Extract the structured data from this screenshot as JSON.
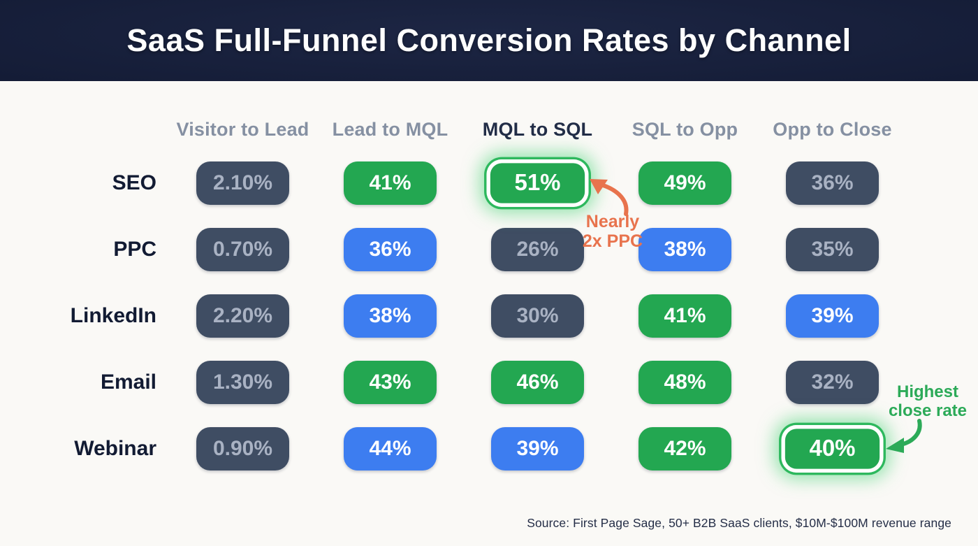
{
  "title": "SaaS Full-Funnel Conversion Rates by Channel",
  "source": "Source: First Page Sage, 50+ B2B SaaS clients, $10M-$100M revenue range",
  "chart_data": {
    "type": "table",
    "title": "SaaS Full-Funnel Conversion Rates by Channel",
    "columns": [
      {
        "label": "Visitor to Lead",
        "emphasized": false
      },
      {
        "label": "Lead to MQL",
        "emphasized": false
      },
      {
        "label": "MQL to SQL",
        "emphasized": true
      },
      {
        "label": "SQL to Opp",
        "emphasized": false
      },
      {
        "label": "Opp to Close",
        "emphasized": false
      }
    ],
    "rows": [
      {
        "channel": "SEO",
        "values": [
          "2.10%",
          "41%",
          "51%",
          "49%",
          "36%"
        ],
        "styles": [
          "slate",
          "green",
          "green-highlight",
          "green",
          "slate"
        ]
      },
      {
        "channel": "PPC",
        "values": [
          "0.70%",
          "36%",
          "26%",
          "38%",
          "35%"
        ],
        "styles": [
          "slate",
          "blue",
          "slate",
          "blue",
          "slate"
        ]
      },
      {
        "channel": "LinkedIn",
        "values": [
          "2.20%",
          "38%",
          "30%",
          "41%",
          "39%"
        ],
        "styles": [
          "slate",
          "blue",
          "slate",
          "green",
          "blue"
        ]
      },
      {
        "channel": "Email",
        "values": [
          "1.30%",
          "43%",
          "46%",
          "48%",
          "32%"
        ],
        "styles": [
          "slate",
          "green",
          "green",
          "green",
          "slate"
        ]
      },
      {
        "channel": "Webinar",
        "values": [
          "0.90%",
          "44%",
          "39%",
          "42%",
          "40%"
        ],
        "styles": [
          "slate",
          "blue",
          "blue",
          "green",
          "green-highlight"
        ]
      }
    ],
    "annotations": [
      {
        "line1": "Nearly",
        "line2": "2x PPC",
        "color": "#e8734d",
        "target": "SEO MQL to SQL 51% pill"
      },
      {
        "line1": "Highest",
        "line2": "close rate",
        "color": "#2caa58",
        "target": "Webinar Opp to Close 40% pill"
      }
    ]
  },
  "colors": {
    "header_background": "#141c36",
    "page_background": "#faf9f6",
    "pill_slate": "#3f4d63",
    "pill_slate_text": "#a9b2c3",
    "pill_blue": "#3d7df0",
    "pill_green": "#23a751",
    "highlight_glow": "#4ad378",
    "annotation_orange": "#e8734d",
    "annotation_green": "#2caa58",
    "column_header_text": "#8590a2",
    "column_header_emphasized_text": "#222d47",
    "row_label_text": "#121b33",
    "source_text": "#252e47"
  }
}
